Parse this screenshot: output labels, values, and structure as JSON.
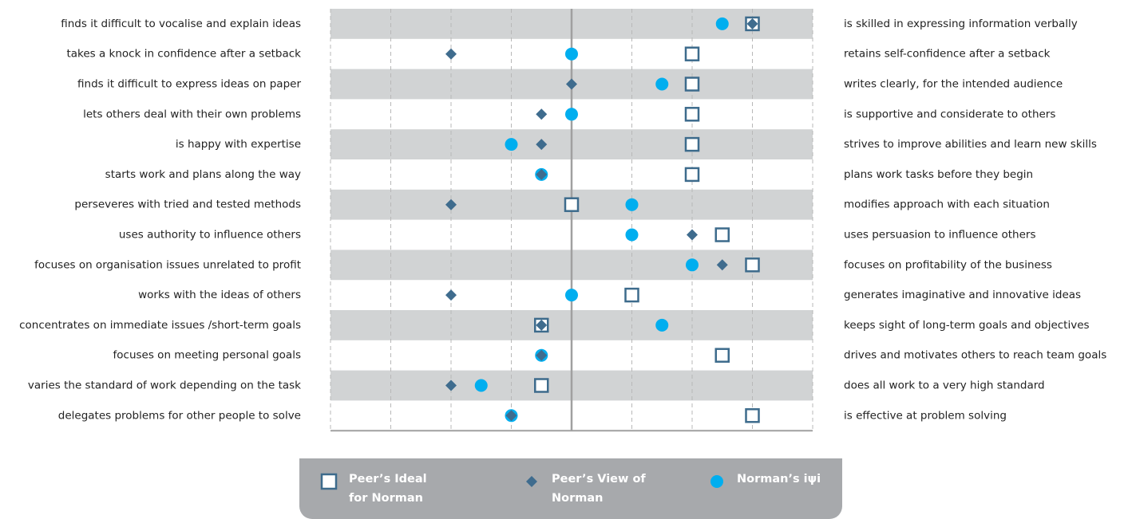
{
  "chart_data": {
    "type": "dot",
    "categories": [
      "finds it difficult to vocalise and explain ideas",
      "takes a knock in confidence after a setback",
      "finds it difficult to express ideas on paper",
      "lets others deal with their own problems",
      "is happy with expertise",
      "starts work and plans along the way",
      "perseveres with tried and tested methods",
      "uses authority to influence others",
      "focuses on organisation issues unrelated to profit",
      "works with the ideas of others",
      "concentrates on immediate issues /short-term goals",
      "focuses on meeting personal goals",
      "varies the standard of work depending on the task",
      "delegates problems for other people to solve"
    ],
    "right_labels": [
      "is skilled in expressing information verbally",
      "retains self-confidence after a setback",
      "writes clearly, for the intended audience",
      "is supportive and considerate to others",
      "strives to improve abilities and learn new skills",
      "plans work tasks before they begin",
      "modifies approach with each situation",
      "uses persuasion to influence others",
      "focuses on profitability of the business",
      "generates imaginative and innovative ideas",
      "keeps sight of long-term goals and objectives",
      "drives and motivates others to reach team goals",
      "does all work to a very high standard",
      "is effective at problem solving"
    ],
    "series": [
      {
        "name": "Peer’s Ideal for Norman",
        "marker": "square",
        "color": "#3d6b8c",
        "values": [
          3,
          2,
          2,
          2,
          2,
          2,
          0,
          2.5,
          3,
          1,
          -0.5,
          2.5,
          -0.5,
          3
        ]
      },
      {
        "name": "Norman’s iψi",
        "marker": "circle",
        "color": "#00aeef",
        "values": [
          2.5,
          0,
          1.5,
          0,
          -1,
          -0.5,
          1,
          1,
          2,
          0,
          1.5,
          -0.5,
          -1.5,
          -1
        ]
      },
      {
        "name": "Peer’s View of Norman",
        "marker": "diamond",
        "color": "#3f6c8e",
        "values": [
          3,
          -2,
          0,
          -0.5,
          -0.5,
          -0.5,
          -2,
          2,
          2.5,
          -2,
          -0.5,
          -0.5,
          -2,
          -1
        ]
      }
    ],
    "xlim": [
      -4,
      4
    ],
    "xticks": [
      -4,
      -3,
      -2,
      -1,
      0,
      1,
      2,
      3,
      4
    ],
    "grid": true
  }
}
